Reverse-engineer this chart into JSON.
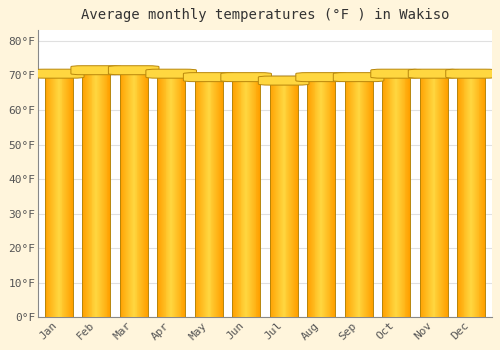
{
  "title": "Average monthly temperatures (°F ) in Wakiso",
  "months": [
    "Jan",
    "Feb",
    "Mar",
    "Apr",
    "May",
    "Jun",
    "Jul",
    "Aug",
    "Sep",
    "Oct",
    "Nov",
    "Dec"
  ],
  "values": [
    71,
    72,
    72,
    71,
    70,
    70,
    69,
    70,
    70,
    71,
    71,
    71
  ],
  "bar_color_center": "#FFD740",
  "bar_color_edge": "#FFA000",
  "bar_border_color": "#B8860B",
  "background_color": "#FFF5DC",
  "plot_bg_color": "#FFFFFF",
  "yticks": [
    0,
    10,
    20,
    30,
    40,
    50,
    60,
    70,
    80
  ],
  "ylim": [
    0,
    83
  ],
  "grid_color": "#E0E0E0",
  "title_fontsize": 10,
  "tick_fontsize": 8,
  "bar_width": 0.75
}
